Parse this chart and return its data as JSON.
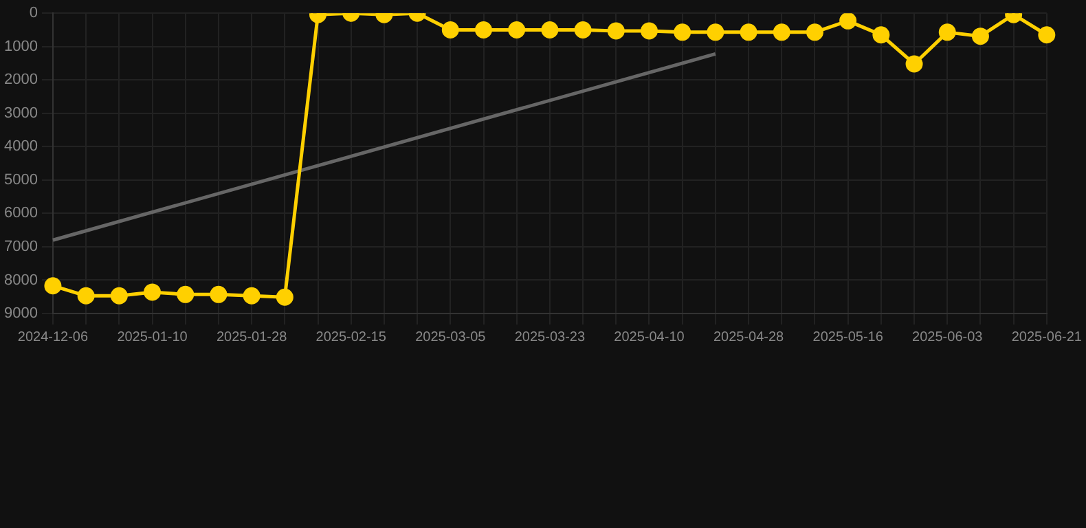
{
  "chart_data": {
    "type": "line",
    "categories": [
      "2024-12-06",
      null,
      null,
      "2025-01-10",
      null,
      null,
      "2025-01-28",
      null,
      null,
      "2025-02-15",
      null,
      null,
      "2025-03-05",
      null,
      null,
      "2025-03-23",
      null,
      null,
      "2025-04-10",
      null,
      null,
      "2025-04-28",
      null,
      null,
      "2025-05-16",
      null,
      null,
      "2025-06-03",
      null,
      null,
      "2025-06-21"
    ],
    "series": [
      {
        "color": "#ffd000",
        "marker": "circle",
        "values": [
          8170,
          8470,
          8470,
          8360,
          8430,
          8430,
          8470,
          8510,
          40,
          0,
          40,
          0,
          500,
          500,
          500,
          500,
          500,
          530,
          530,
          570,
          570,
          570,
          570,
          570,
          230,
          650,
          1520,
          570,
          690,
          40,
          650
        ]
      },
      {
        "type": "line",
        "color": "#666666",
        "marker": "none",
        "values": [
          6800,
          null,
          null,
          null,
          null,
          null,
          null,
          null,
          null,
          null,
          null,
          null,
          null,
          null,
          null,
          null,
          null,
          null,
          null,
          null,
          1220,
          null,
          null,
          null,
          null,
          null,
          null,
          null,
          null,
          null,
          null
        ]
      }
    ],
    "ylim": [
      9000,
      0
    ],
    "yticks": [
      0,
      1000,
      2000,
      3000,
      4000,
      5000,
      6000,
      7000,
      8000,
      9000
    ],
    "grid": true,
    "legend": false
  }
}
